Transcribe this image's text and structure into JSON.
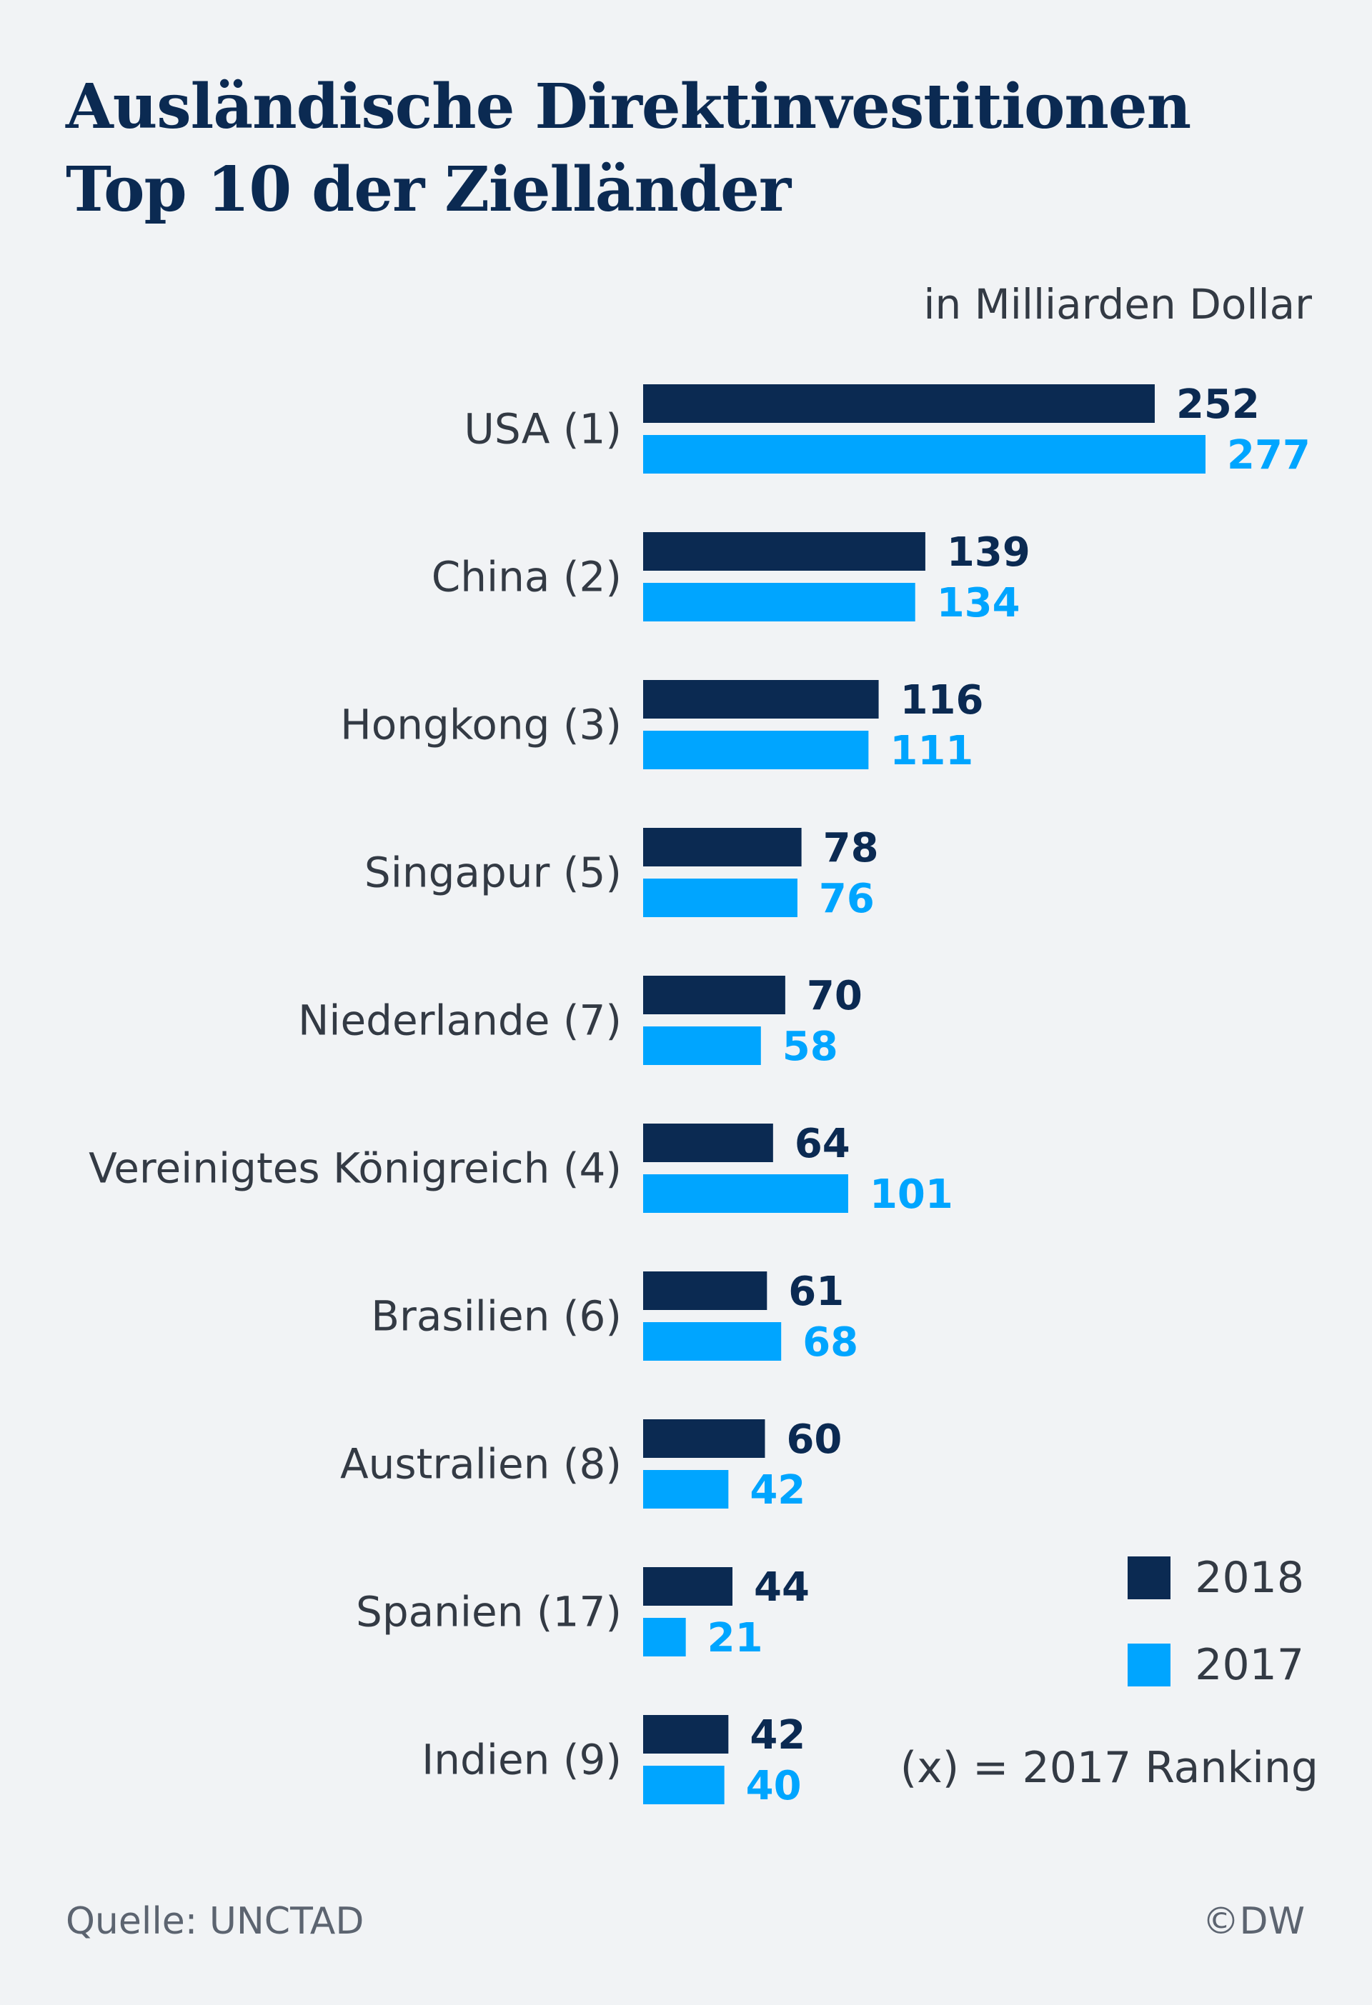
{
  "title": {
    "line1": "Ausländische Direktinvestitionen",
    "line2": "Top 10 der Zielländer"
  },
  "unit": "in Milliarden Dollar",
  "legend": [
    {
      "label": "2018",
      "color": "#0b2a52"
    },
    {
      "label": "2017",
      "color": "#00a5ff"
    }
  ],
  "note": "(x) = 2017 Ranking",
  "source": "Quelle: UNCTAD",
  "copyright": "©DW",
  "chart_data": {
    "type": "bar",
    "orientation": "horizontal",
    "categories": [
      "USA (1)",
      "China (2)",
      "Hongkong (3)",
      "Singapur (5)",
      "Niederlande (7)",
      "Vereinigtes Königreich (4)",
      "Brasilien (6)",
      "Australien (8)",
      "Spanien (17)",
      "Indien (9)"
    ],
    "series": [
      {
        "name": "2018",
        "color": "#0b2a52",
        "values": [
          252,
          139,
          116,
          78,
          70,
          64,
          61,
          60,
          44,
          42
        ]
      },
      {
        "name": "2017",
        "color": "#00a5ff",
        "values": [
          277,
          134,
          111,
          76,
          58,
          101,
          68,
          42,
          21,
          40
        ]
      }
    ],
    "title": "Ausländische Direktinvestitionen Top 10 der Zielländer",
    "xlabel": "in Milliarden Dollar",
    "ylabel": "",
    "xlim": [
      0,
      277
    ],
    "grid": false,
    "legend_position": "bottom-right"
  }
}
